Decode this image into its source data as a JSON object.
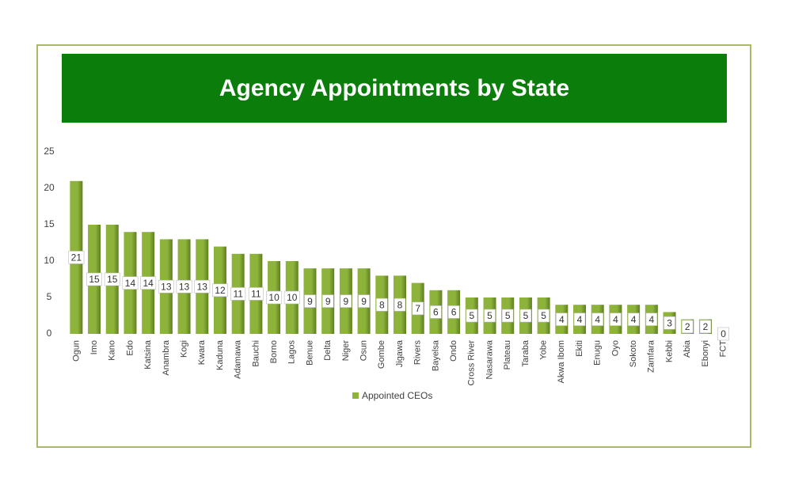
{
  "chart_data": {
    "type": "bar",
    "title": "Agency Appointments by State",
    "categories": [
      "Ogun",
      "Imo",
      "Kano",
      "Edo",
      "Katsina",
      "Anambra",
      "Kogi",
      "Kwara",
      "Kaduna",
      "Adamawa",
      "Bauchi",
      "Borno",
      "Lagos",
      "Benue",
      "Delta",
      "Niger",
      "Osun",
      "Gombe",
      "Jigawa",
      "Rivers",
      "Bayelsa",
      "Ondo",
      "Cross River",
      "Nasarawa",
      "Plateau",
      "Taraba",
      "Yobe",
      "Akwa Ibom",
      "Ekiti",
      "Enugu",
      "Oyo",
      "Sokoto",
      "Zamfara",
      "Kebbi",
      "Abia",
      "Ebonyi",
      "FCT"
    ],
    "series": [
      {
        "name": "Appointed CEOs",
        "color": "#8db33b",
        "values": [
          21,
          15,
          15,
          14,
          14,
          13,
          13,
          13,
          12,
          11,
          11,
          10,
          10,
          9,
          9,
          9,
          9,
          8,
          8,
          7,
          6,
          6,
          5,
          5,
          5,
          5,
          5,
          4,
          4,
          4,
          4,
          4,
          4,
          3,
          2,
          2,
          0
        ]
      }
    ],
    "ylim": [
      0,
      25
    ],
    "yticks": [
      0,
      5,
      10,
      15,
      20,
      25
    ],
    "grid": false,
    "legend": "bottom"
  }
}
